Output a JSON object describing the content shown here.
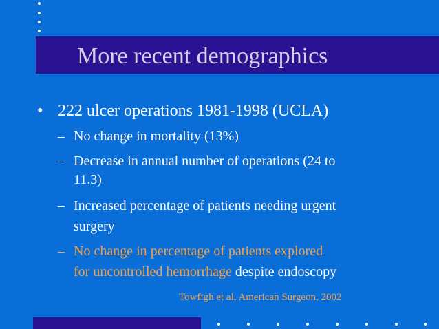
{
  "slide": {
    "title": "More recent demographics",
    "bullet": {
      "mark": "•",
      "text": "222 ulcer operations 1981-1998 (UCLA)"
    },
    "sub_items": [
      {
        "dash": "–",
        "lines": [
          "No change in mortality (13%)"
        ]
      },
      {
        "dash": "–",
        "lines": [
          "Decrease in annual number of operations (24 to",
          "11.3)"
        ]
      },
      {
        "dash": "–",
        "lines": [
          "Increased percentage of patients needing urgent",
          "surgery"
        ]
      },
      {
        "dash": "–",
        "line1": "No change in percentage of patients explored",
        "line2_orange": "for uncontrolled hemorrhage",
        "line2_white": " despite endoscopy"
      }
    ],
    "citation": "Towfigh et al, American Surgeon, 2002",
    "colors": {
      "background": "#0a6ed8",
      "title_bar": "#2a1393",
      "title_text": "#d8d0e8",
      "accent_orange": "#f7a040",
      "body_text": "#ffffff"
    }
  }
}
